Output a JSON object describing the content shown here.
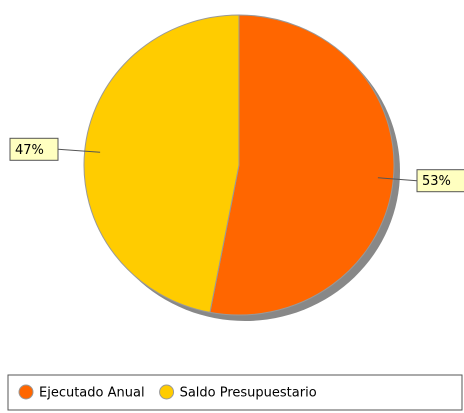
{
  "chart_data": {
    "type": "pie",
    "categories": [
      "Ejecutado Anual",
      "Saldo Presupuestario"
    ],
    "values": [
      53,
      47
    ],
    "value_labels": [
      "53%",
      "47%"
    ],
    "colors": [
      "#ff6600",
      "#ffcc00"
    ],
    "legend": "bottom"
  }
}
